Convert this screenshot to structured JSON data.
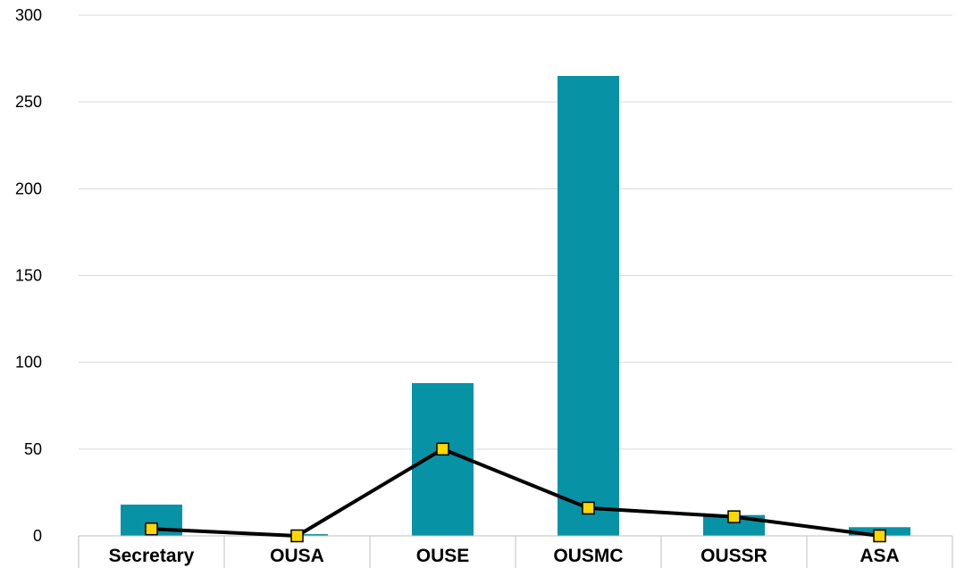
{
  "chart_data": {
    "type": "bar",
    "title": "",
    "xlabel": "",
    "ylabel": "",
    "categories": [
      "Secretary",
      "OUSA",
      "OUSE",
      "OUSMC",
      "OUSSR",
      "ASA"
    ],
    "series": [
      {
        "type": "bar",
        "values": [
          18,
          1,
          88,
          265,
          12,
          5
        ],
        "color": "#0892A5"
      },
      {
        "type": "line",
        "values": [
          4,
          0,
          50,
          16,
          11,
          0
        ],
        "color": "#000000",
        "marker_color": "#FFD700"
      }
    ],
    "ylim": [
      0,
      300
    ],
    "yticks": [
      0,
      50,
      100,
      150,
      200,
      250,
      300
    ],
    "grid": true,
    "legend": "none"
  }
}
